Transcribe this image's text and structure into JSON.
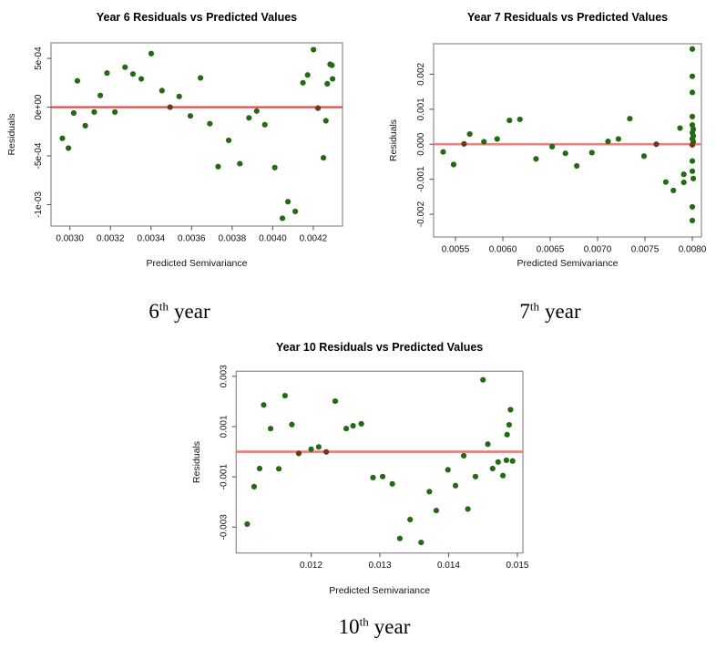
{
  "page": {
    "background": "#ffffff"
  },
  "colors": {
    "point": "#226b12",
    "point_on_line": "#6a3a12",
    "box": "#8c8c8c",
    "tick": "#5a5a5a",
    "text": "#111111"
  },
  "figure": {
    "captions": [
      {
        "number": "6",
        "suffix": "th",
        "word": "year"
      },
      {
        "number": "7",
        "suffix": "th",
        "word": "year"
      },
      {
        "number": "10",
        "suffix": "th",
        "word": "year"
      }
    ]
  },
  "chart_data": [
    {
      "type": "scatter",
      "title": "Year 6 Residuals vs Predicted Values",
      "xlabel": "Predicted Semivariance",
      "ylabel": "Residuals",
      "xlim": [
        0.002907,
        0.004344
      ],
      "ylim": [
        -0.00122,
        0.00066
      ],
      "grid": false,
      "legend": null,
      "xticks": [
        {
          "v": 0.003,
          "label": "0.0030"
        },
        {
          "v": 0.0032,
          "label": "0.0032"
        },
        {
          "v": 0.0034,
          "label": "0.0034"
        },
        {
          "v": 0.0036,
          "label": "0.0036"
        },
        {
          "v": 0.0038,
          "label": "0.0038"
        },
        {
          "v": 0.004,
          "label": "0.0040"
        },
        {
          "v": 0.0042,
          "label": "0.0042"
        }
      ],
      "yticks": [
        {
          "v": 0.0005,
          "label": "5e-04"
        },
        {
          "v": 0.0,
          "label": "0e+00"
        },
        {
          "v": -0.0005,
          "label": "-5e-04"
        },
        {
          "v": -0.001,
          "label": "-1e-03"
        }
      ],
      "refline": {
        "y": 0,
        "color": "#e84040",
        "width": 2.2
      },
      "points": [
        [
          0.002963,
          -0.00032
        ],
        [
          0.002993,
          -0.00042
        ],
        [
          0.003019,
          -6e-05
        ],
        [
          0.003037,
          0.00027
        ],
        [
          0.003076,
          -0.00019
        ],
        [
          0.00312,
          -5e-05
        ],
        [
          0.00315,
          0.00012
        ],
        [
          0.003183,
          0.00035
        ],
        [
          0.003222,
          -5e-05
        ],
        [
          0.003272,
          0.00041
        ],
        [
          0.003311,
          0.00034
        ],
        [
          0.003352,
          0.00029
        ],
        [
          0.003401,
          0.00055
        ],
        [
          0.003454,
          0.00017
        ],
        [
          0.003494,
          0.0,
          1
        ],
        [
          0.003539,
          0.00011
        ],
        [
          0.003594,
          -9e-05
        ],
        [
          0.003644,
          0.0003
        ],
        [
          0.00369,
          -0.00017
        ],
        [
          0.003731,
          -0.00061
        ],
        [
          0.003783,
          -0.00034
        ],
        [
          0.003838,
          -0.00058
        ],
        [
          0.003883,
          -0.00011
        ],
        [
          0.003921,
          -4e-05
        ],
        [
          0.003961,
          -0.00018
        ],
        [
          0.00401,
          -0.00062
        ],
        [
          0.004048,
          -0.00114
        ],
        [
          0.004075,
          -0.00097
        ],
        [
          0.004111,
          -0.00107
        ],
        [
          0.004149,
          0.00025
        ],
        [
          0.004172,
          0.00033
        ],
        [
          0.004201,
          0.00059
        ],
        [
          0.004223,
          -1e-05,
          1
        ],
        [
          0.004269,
          0.00024
        ],
        [
          0.004283,
          0.00044
        ],
        [
          0.004292,
          0.00043
        ],
        [
          0.004295,
          0.00029
        ],
        [
          0.004262,
          -0.00014
        ],
        [
          0.00425,
          -0.00052
        ]
      ]
    },
    {
      "type": "scatter",
      "title": "Year 7 Residuals vs Predicted Values",
      "xlabel": "Predicted Semivariance",
      "ylabel": "Residuals",
      "xlim": [
        0.005269,
        0.008096
      ],
      "ylim": [
        -0.00265,
        0.00287
      ],
      "grid": false,
      "legend": null,
      "xticks": [
        {
          "v": 0.0055,
          "label": "0.0055"
        },
        {
          "v": 0.006,
          "label": "0.0060"
        },
        {
          "v": 0.0065,
          "label": "0.0065"
        },
        {
          "v": 0.007,
          "label": "0.0070"
        },
        {
          "v": 0.0075,
          "label": "0.0075"
        },
        {
          "v": 0.008,
          "label": "0.0080"
        }
      ],
      "yticks": [
        {
          "v": 0.002,
          "label": "0.002"
        },
        {
          "v": 0.001,
          "label": "0.001"
        },
        {
          "v": 0.0,
          "label": "0.000"
        },
        {
          "v": -0.001,
          "label": "-0.001"
        },
        {
          "v": -0.002,
          "label": "-0.002"
        }
      ],
      "refline": {
        "y": 0,
        "color": "#f28080",
        "width": 2.6
      },
      "points": [
        [
          0.00537,
          -0.00022
        ],
        [
          0.00548,
          -0.00058
        ],
        [
          0.00559,
          1e-05,
          1
        ],
        [
          0.00565,
          0.00029
        ],
        [
          0.0058,
          7e-05
        ],
        [
          0.00594,
          0.00015
        ],
        [
          0.00607,
          0.00068
        ],
        [
          0.00618,
          0.00071
        ],
        [
          0.00635,
          -0.00042
        ],
        [
          0.00652,
          -7e-05
        ],
        [
          0.00666,
          -0.00026
        ],
        [
          0.00678,
          -0.00062
        ],
        [
          0.00694,
          -0.00024
        ],
        [
          0.00711,
          8e-05
        ],
        [
          0.00722,
          0.00015
        ],
        [
          0.00734,
          0.00073
        ],
        [
          0.00749,
          -0.00034
        ],
        [
          0.00762,
          0.0,
          1
        ],
        [
          0.00772,
          -0.00108
        ],
        [
          0.0078,
          -0.00132
        ],
        [
          0.00787,
          0.00046
        ],
        [
          0.00791,
          -0.00086
        ],
        [
          0.00791,
          -0.00109
        ],
        [
          0.008,
          0.00272
        ],
        [
          0.008,
          0.00194
        ],
        [
          0.008,
          0.00148
        ],
        [
          0.008,
          0.00079
        ],
        [
          0.008,
          0.00055
        ],
        [
          0.00801,
          0.00043
        ],
        [
          0.008,
          0.00033
        ],
        [
          0.00801,
          0.00024
        ],
        [
          0.008,
          0.00015
        ],
        [
          0.00801,
          7e-05
        ],
        [
          0.008,
          -2e-05,
          1
        ],
        [
          0.008,
          -0.00048
        ],
        [
          0.008,
          -0.00077
        ],
        [
          0.00801,
          -0.00098
        ],
        [
          0.008,
          -0.00179
        ],
        [
          0.008,
          -0.00218
        ]
      ]
    },
    {
      "type": "scatter",
      "title": "Year 10 Residuals vs Predicted Values",
      "xlabel": "Predicted Semivariance",
      "ylabel": "Residuals",
      "xlim": [
        0.01091,
        0.01508
      ],
      "ylim": [
        -0.00403,
        0.0032
      ],
      "grid": false,
      "legend": null,
      "xticks": [
        {
          "v": 0.012,
          "label": "0.012"
        },
        {
          "v": 0.013,
          "label": "0.013"
        },
        {
          "v": 0.014,
          "label": "0.014"
        },
        {
          "v": 0.015,
          "label": "0.015"
        }
      ],
      "yticks": [
        {
          "v": 0.003,
          "label": "0.003"
        },
        {
          "v": 0.001,
          "label": "0.001"
        },
        {
          "v": -0.001,
          "label": "-0.001"
        },
        {
          "v": -0.003,
          "label": "-0.003"
        }
      ],
      "refline": {
        "y": 0,
        "color": "#f07878",
        "width": 2.6
      },
      "points": [
        [
          0.01107,
          -0.00288
        ],
        [
          0.01117,
          -0.00139
        ],
        [
          0.01125,
          -0.00067
        ],
        [
          0.01131,
          0.00186
        ],
        [
          0.01141,
          0.00092
        ],
        [
          0.01153,
          -0.00068
        ],
        [
          0.01162,
          0.00223
        ],
        [
          0.01172,
          0.00108
        ],
        [
          0.01182,
          -7e-05,
          1
        ],
        [
          0.012,
          0.0001
        ],
        [
          0.01211,
          0.00019
        ],
        [
          0.01222,
          -1e-05,
          1
        ],
        [
          0.01235,
          0.00201
        ],
        [
          0.01251,
          0.00092
        ],
        [
          0.01261,
          0.00103
        ],
        [
          0.01273,
          0.00111
        ],
        [
          0.0129,
          -0.00103
        ],
        [
          0.01304,
          -0.00099
        ],
        [
          0.01318,
          -0.00128
        ],
        [
          0.01329,
          -0.00345
        ],
        [
          0.01344,
          -0.0027
        ],
        [
          0.0136,
          -0.00361
        ],
        [
          0.01372,
          -0.00159
        ],
        [
          0.01382,
          -0.00234
        ],
        [
          0.01399,
          -0.00072
        ],
        [
          0.0141,
          -0.00135
        ],
        [
          0.01422,
          -0.00016
        ],
        [
          0.01428,
          -0.00228
        ],
        [
          0.01439,
          -0.00099
        ],
        [
          0.0145,
          0.00286
        ],
        [
          0.01457,
          0.0003
        ],
        [
          0.01464,
          -0.00067
        ],
        [
          0.01472,
          -0.00041
        ],
        [
          0.01479,
          -0.00095
        ],
        [
          0.01484,
          -0.00034
        ],
        [
          0.01485,
          0.00068
        ],
        [
          0.01488,
          0.00107
        ],
        [
          0.0149,
          0.00167
        ],
        [
          0.01493,
          -0.00037
        ]
      ]
    }
  ]
}
